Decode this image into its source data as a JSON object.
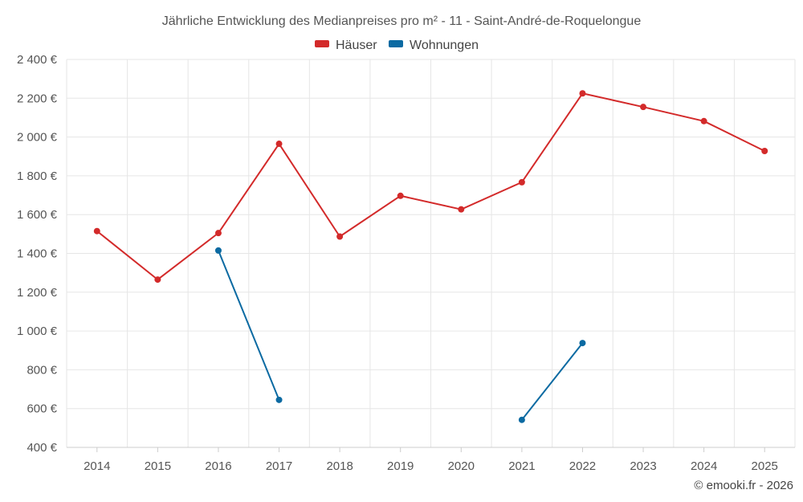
{
  "chart_data": {
    "type": "line",
    "title": "Jährliche Entwicklung des Medianpreises pro m² - 11 - Saint-André-de-Roquelongue",
    "xlabel": "",
    "ylabel": "",
    "categories": [
      "2014",
      "2015",
      "2016",
      "2017",
      "2018",
      "2019",
      "2020",
      "2021",
      "2022",
      "2023",
      "2024",
      "2025"
    ],
    "ylim": [
      400,
      2400
    ],
    "yticks": [
      400,
      600,
      800,
      1000,
      1200,
      1400,
      1600,
      1800,
      2000,
      2200,
      2400
    ],
    "ytick_labels": [
      "400 €",
      "600 €",
      "800 €",
      "1 000 €",
      "1 200 €",
      "1 400 €",
      "1 600 €",
      "1 800 €",
      "2 000 €",
      "2 200 €",
      "2 400 €"
    ],
    "grid": true,
    "legend_position": "top-center",
    "series": [
      {
        "name": "Häuser",
        "color": "#d32a2a",
        "values": [
          1515,
          1265,
          1505,
          1965,
          1487,
          1697,
          1627,
          1767,
          2225,
          2155,
          2082,
          1928
        ]
      },
      {
        "name": "Wohnungen",
        "color": "#0b6aa2",
        "values": [
          null,
          null,
          1415,
          645,
          null,
          null,
          null,
          542,
          938,
          null,
          null,
          null
        ]
      }
    ]
  },
  "credit": "© emooki.fr - 2026"
}
